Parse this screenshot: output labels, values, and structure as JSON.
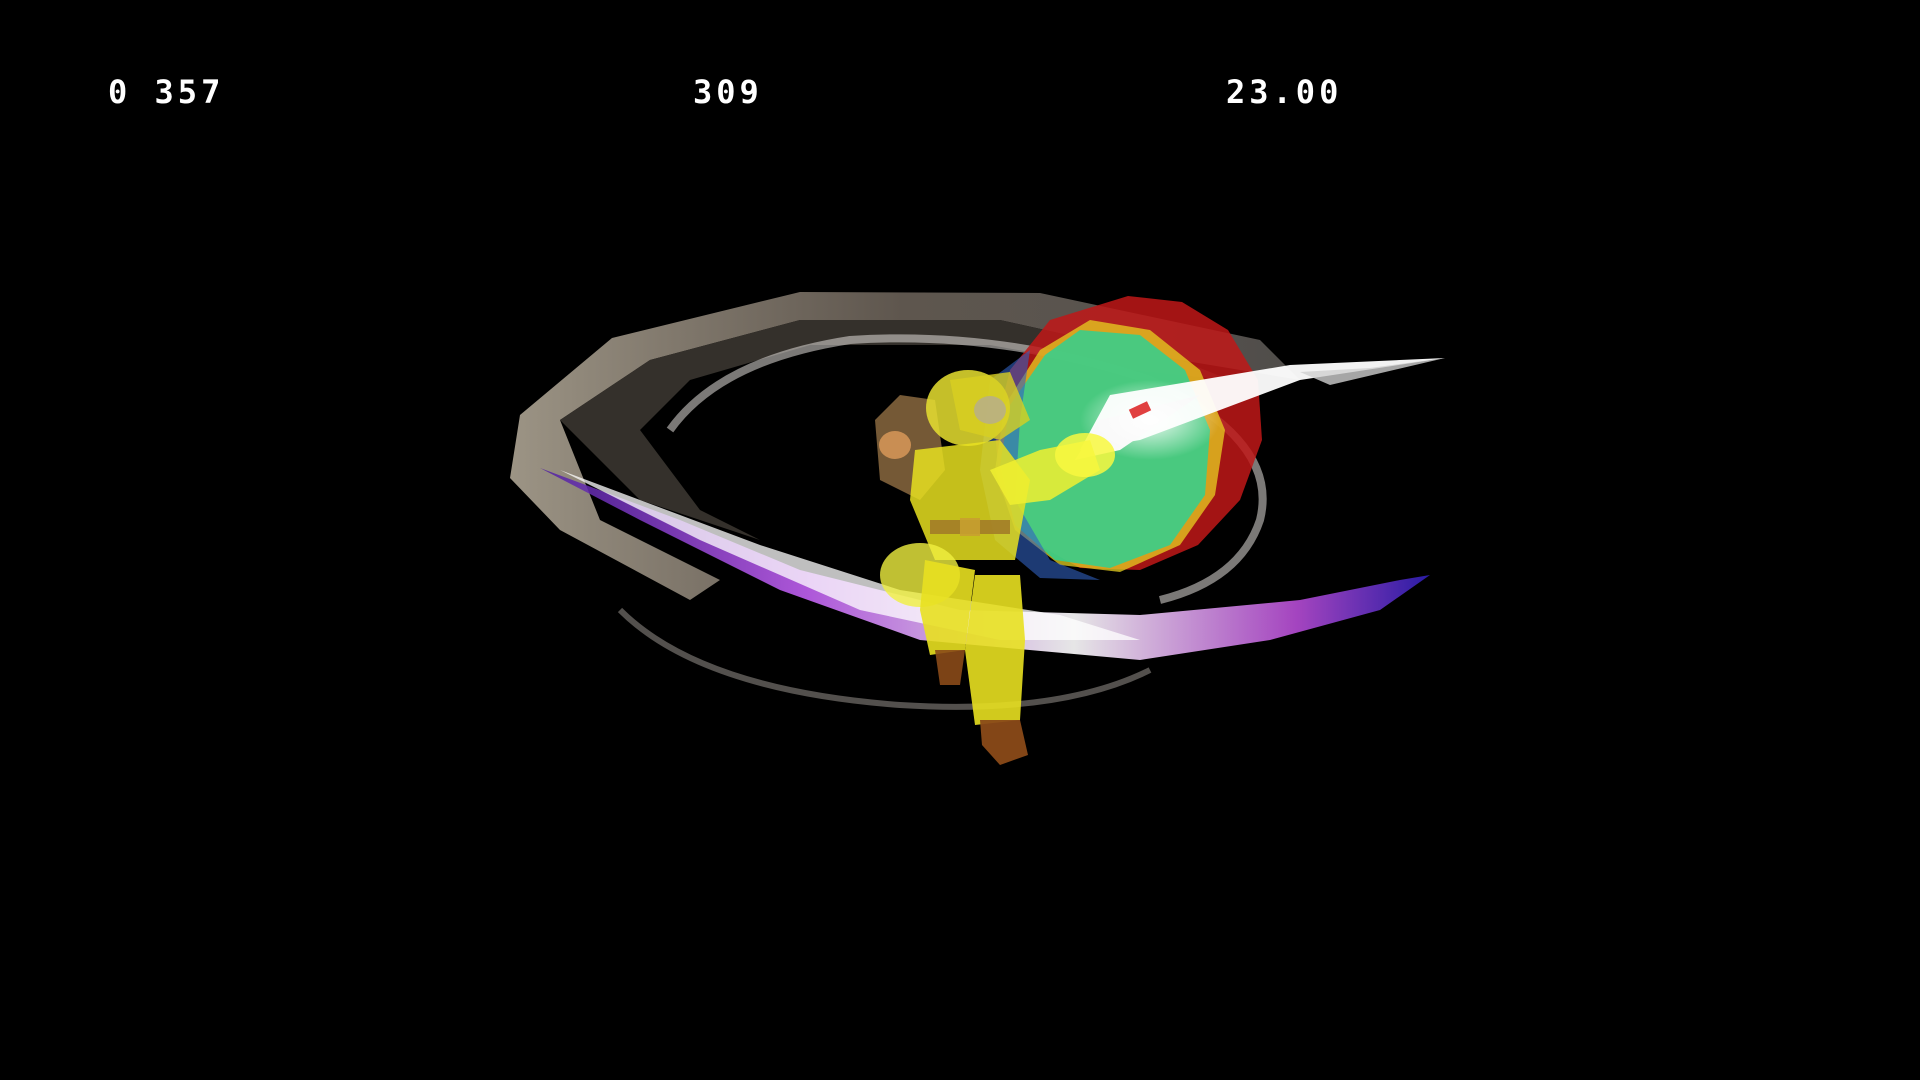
{
  "hud": {
    "left_text": "0 357",
    "center_text": "309",
    "right_text": "23.00"
  },
  "scene": {
    "character": "link-character",
    "effect": "spin-attack-trail",
    "hitboxes": [
      "red-hitbox",
      "yellow-hitbox",
      "green-hitbox"
    ]
  },
  "colors": {
    "background": "#000000",
    "hud_text": "#ffffff",
    "trail": "#c9bfb0",
    "trail_edge": "#9b30e0",
    "character_overlay": "#f0f020",
    "hitbox_red": "#c01818",
    "hitbox_green": "#30d090"
  }
}
